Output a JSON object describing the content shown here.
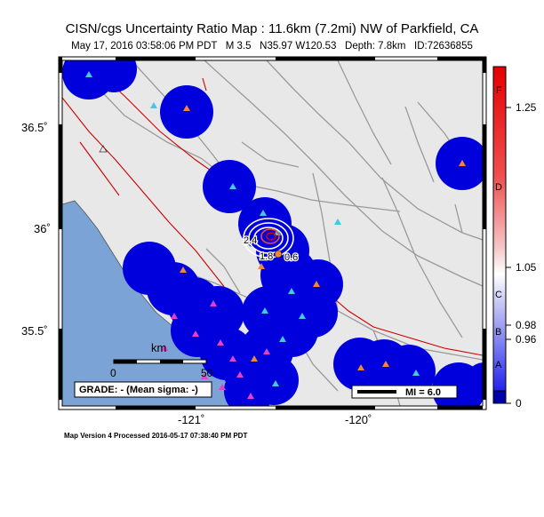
{
  "header": {
    "title": "CISN/cgs Uncertainty Ratio Map : 11.6km (7.2mi) NW of Parkfield, CA",
    "subtitle": "May 17, 2016 03:58:06 PM PDT   M 3.5   N35.97 W120.53   Depth: 7.8km   ID:72636855"
  },
  "footer": {
    "text": "Map Version 4 Processed 2016-05-17 07:38:40 PM PDT"
  },
  "axes": {
    "lat_labels": [
      "36.5˚",
      "36˚",
      "35.5˚"
    ],
    "lon_labels": [
      "-121˚",
      "-120˚"
    ]
  },
  "scalebar": {
    "title": "km",
    "start": "0",
    "end": "50"
  },
  "grade_box": {
    "text": "GRADE: - (Mean sigma: -)"
  },
  "mi_box": {
    "text": "MI = 6.0"
  },
  "contour_labels": {
    "a": "2.4",
    "b": "1.8",
    "c": "0.6"
  },
  "colorbar": {
    "values": [
      "1.25",
      "1.05",
      "0.98",
      "0.96",
      "0"
    ],
    "grades": [
      "F",
      "D",
      "C",
      "B",
      "A"
    ]
  },
  "colors": {
    "ocean": "#7ba3d6",
    "land": "#e8e8e8",
    "blob": "#0000dd",
    "fault": "#cc0000",
    "road": "#9a9a9a"
  }
}
